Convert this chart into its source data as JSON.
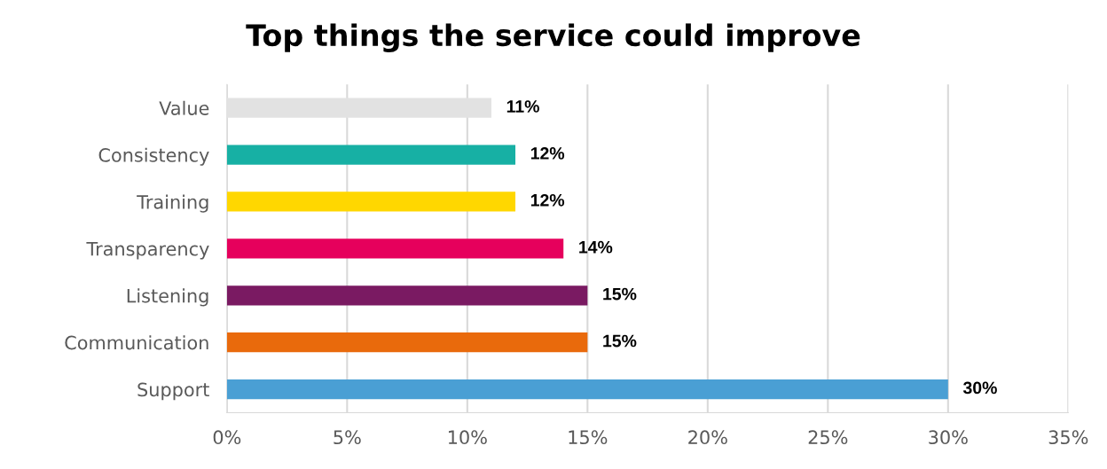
{
  "chart_data": {
    "type": "bar",
    "orientation": "horizontal",
    "title": "Top things the service could improve",
    "categories": [
      "Value",
      "Consistency",
      "Training",
      "Transparency",
      "Listening",
      "Communication",
      "Support"
    ],
    "values": [
      11,
      12,
      12,
      14,
      15,
      15,
      30
    ],
    "colors": [
      "#e2e2e2",
      "#17b0a4",
      "#ffd700",
      "#e6005c",
      "#7a1a62",
      "#e96a0c",
      "#4a9fd4"
    ],
    "value_labels": [
      "11%",
      "12%",
      "12%",
      "14%",
      "15%",
      "15%",
      "30%"
    ],
    "xlim": [
      0,
      35
    ],
    "xticks": [
      {
        "value": 0,
        "label": "0%"
      },
      {
        "value": 5,
        "label": "5%"
      },
      {
        "value": 10,
        "label": "10%"
      },
      {
        "value": 15,
        "label": "15%"
      },
      {
        "value": 20,
        "label": "20%"
      },
      {
        "value": 25,
        "label": "25%"
      },
      {
        "value": 30,
        "label": "30%"
      },
      {
        "value": 35,
        "label": "35%"
      }
    ],
    "grid": "x",
    "legend": false
  }
}
